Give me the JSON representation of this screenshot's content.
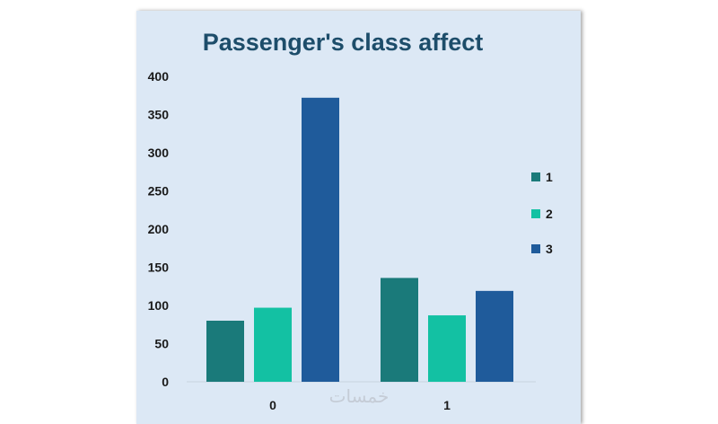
{
  "chart_data": {
    "type": "bar",
    "title": "Passenger's class affect",
    "xlabel": "",
    "ylabel": "",
    "categories": [
      "0",
      "1"
    ],
    "series": [
      {
        "name": "1",
        "color": "#1a7a7a",
        "values": [
          80,
          136
        ]
      },
      {
        "name": "2",
        "color": "#13c1a3",
        "values": [
          97,
          87
        ]
      },
      {
        "name": "3",
        "color": "#1f5b9b",
        "values": [
          372,
          119
        ]
      }
    ],
    "ylim": [
      0,
      400
    ],
    "yticks": [
      0,
      50,
      100,
      150,
      200,
      250,
      300,
      350,
      400
    ],
    "grid": false,
    "legend_position": "right",
    "watermark": "خمسات"
  }
}
